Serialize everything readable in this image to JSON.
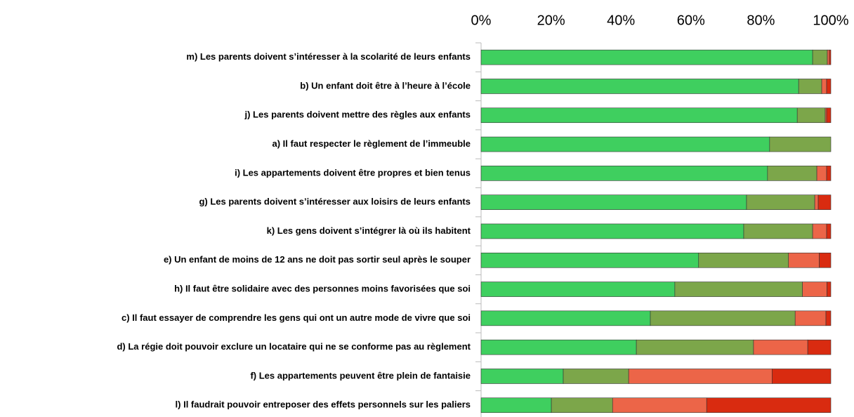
{
  "chart_data": {
    "type": "stacked-barh",
    "categories": [
      "m) Les parents doivent s’intéresser à la scolarité de leurs enfants",
      "b) Un enfant doit être à l’heure à l’école",
      "j) Les parents doivent mettre des règles aux enfants",
      "a) Il faut respecter le règlement de l’immeuble",
      "i) Les appartements doivent être propres et bien tenus",
      "g) Les parents doivent s’intéresser aux loisirs de leurs enfants",
      "k) Les gens doivent s’intégrer là où ils habitent",
      "e) Un enfant de moins de 12 ans ne doit pas sortir seul après le souper",
      "h) Il faut être solidaire avec des personnes moins favorisées que soi",
      "c) Il faut essayer de comprendre les gens qui ont un autre mode de vivre que soi",
      "d) La régie doit pouvoir exclure un locataire qui ne se conforme pas au règlement",
      "f) Les appartements peuvent être plein de fantaisie",
      "l) Il faudrait pouvoir entreposer des effets personnels sur les paliers"
    ],
    "series": [
      {
        "color": "#3fcf5f",
        "values": [
          94.8,
          90.8,
          90.4,
          82.5,
          81.9,
          75.9,
          75.1,
          62.2,
          55.4,
          48.4,
          44.4,
          23.5,
          20.1
        ]
      },
      {
        "color": "#7ca64a",
        "values": [
          4.2,
          6.6,
          8.0,
          17.5,
          14.1,
          19.5,
          19.7,
          25.7,
          36.5,
          41.4,
          33.5,
          18.7,
          17.5
        ]
      },
      {
        "color": "#ec6548",
        "values": [
          0.6,
          1.4,
          0.4,
          0,
          2.8,
          1.0,
          4.0,
          8.8,
          7.0,
          8.8,
          15.5,
          41.0,
          26.9
        ]
      },
      {
        "color": "#d92b10",
        "values": [
          0.4,
          1.2,
          1.2,
          0,
          1.2,
          3.6,
          1.2,
          3.3,
          1.1,
          1.4,
          6.6,
          16.8,
          35.5
        ]
      }
    ],
    "xlim": [
      0,
      100
    ],
    "xticks": [
      {
        "value": 0,
        "label": "0%"
      },
      {
        "value": 20,
        "label": "20%"
      },
      {
        "value": 40,
        "label": "40%"
      },
      {
        "value": 60,
        "label": "60%"
      },
      {
        "value": 80,
        "label": "80%"
      },
      {
        "value": 100,
        "label": "100%"
      }
    ]
  }
}
